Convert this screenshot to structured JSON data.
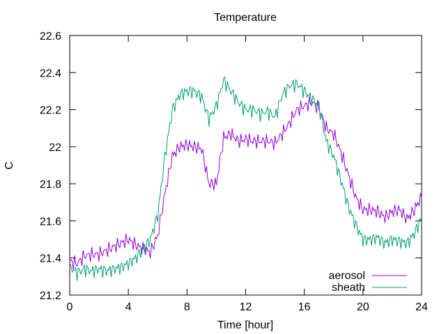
{
  "chart_data": {
    "type": "line",
    "title": "Temperature",
    "xlabel": "Time [hour]",
    "ylabel": "C",
    "xlim": [
      0,
      24
    ],
    "ylim": [
      21.2,
      22.6
    ],
    "xticks": [
      0,
      4,
      8,
      12,
      16,
      20,
      24
    ],
    "yticks": [
      21.2,
      21.4,
      21.6,
      21.8,
      22.0,
      22.2,
      22.4,
      22.6
    ],
    "xtick_labels": [
      "0",
      "4",
      "8",
      "12",
      "16",
      "20",
      "24"
    ],
    "ytick_labels": [
      "21.2",
      "21.4",
      "21.6",
      "21.8",
      "22",
      "22.2",
      "22.4",
      "22.6"
    ],
    "grid": false,
    "legend_position": "bottom-right",
    "series": [
      {
        "name": "aerosol",
        "color": "#9400d3",
        "x": [
          0,
          0.5,
          1,
          1.5,
          2,
          2.5,
          3,
          3.5,
          4,
          4.5,
          5,
          5.5,
          6,
          6.5,
          7,
          7.5,
          8,
          8.5,
          9,
          9.5,
          10,
          10.5,
          11,
          11.5,
          12,
          12.5,
          13,
          13.5,
          14,
          14.5,
          15,
          15.5,
          16,
          16.5,
          17,
          17.5,
          18,
          18.5,
          19,
          19.5,
          20,
          20.5,
          21,
          21.5,
          22,
          22.5,
          23,
          23.5,
          24
        ],
        "y": [
          21.38,
          21.37,
          21.41,
          21.42,
          21.42,
          21.44,
          21.46,
          21.48,
          21.5,
          21.47,
          21.45,
          21.43,
          21.52,
          21.75,
          21.95,
          22.0,
          22.01,
          22.0,
          21.99,
          21.8,
          21.8,
          22.05,
          22.07,
          22.03,
          22.04,
          22.03,
          22.03,
          22.03,
          22.02,
          22.07,
          22.13,
          22.2,
          22.22,
          22.24,
          22.21,
          22.1,
          22.07,
          21.97,
          21.85,
          21.73,
          21.66,
          21.66,
          21.65,
          21.62,
          21.65,
          21.66,
          21.61,
          21.66,
          21.73
        ]
      },
      {
        "name": "sheath",
        "color": "#009e73",
        "x": [
          0,
          0.5,
          1,
          1.5,
          2,
          2.5,
          3,
          3.5,
          4,
          4.5,
          5,
          5.5,
          6,
          6.5,
          7,
          7.5,
          8,
          8.5,
          9,
          9.5,
          10,
          10.5,
          11,
          11.5,
          12,
          12.5,
          13,
          13.5,
          14,
          14.5,
          15,
          15.5,
          16,
          16.5,
          17,
          17.5,
          18,
          18.5,
          19,
          19.5,
          20,
          20.5,
          21,
          21.5,
          22,
          22.5,
          23,
          23.5,
          24
        ],
        "y": [
          21.35,
          21.32,
          21.34,
          21.33,
          21.34,
          21.33,
          21.34,
          21.35,
          21.37,
          21.4,
          21.45,
          21.5,
          21.63,
          21.95,
          22.2,
          22.28,
          22.3,
          22.3,
          22.27,
          22.15,
          22.22,
          22.36,
          22.3,
          22.24,
          22.2,
          22.2,
          22.18,
          22.19,
          22.16,
          22.28,
          22.33,
          22.34,
          22.3,
          22.26,
          22.22,
          22.03,
          21.95,
          21.82,
          21.68,
          21.58,
          21.5,
          21.5,
          21.51,
          21.48,
          21.5,
          21.49,
          21.48,
          21.53,
          21.62
        ]
      }
    ]
  }
}
